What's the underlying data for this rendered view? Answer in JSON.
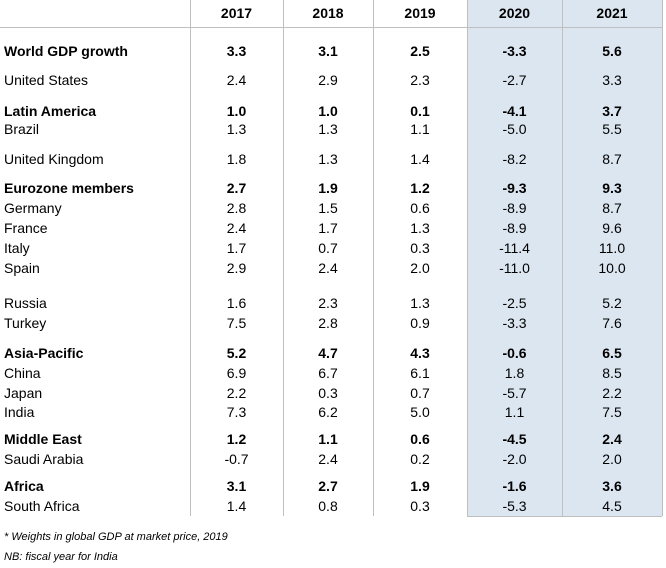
{
  "table": {
    "columns": [
      "2017",
      "2018",
      "2019",
      "2020",
      "2021"
    ],
    "rows": [
      {
        "label": "World GDP growth",
        "bold": true,
        "values": [
          "3.3",
          "3.1",
          "2.5",
          "-3.3",
          "5.6"
        ]
      },
      {
        "label": "United States",
        "values": [
          "2.4",
          "2.9",
          "2.3",
          "-2.7",
          "3.3"
        ]
      },
      {
        "label": "Latin America",
        "bold": true,
        "values": [
          "1.0",
          "1.0",
          "0.1",
          "-4.1",
          "3.7"
        ]
      },
      {
        "label": "Brazil",
        "values": [
          "1.3",
          "1.3",
          "1.1",
          "-5.0",
          "5.5"
        ]
      },
      {
        "label": "United Kingdom",
        "values": [
          "1.8",
          "1.3",
          "1.4",
          "-8.2",
          "8.7"
        ]
      },
      {
        "label": "Eurozone members",
        "bold": true,
        "values": [
          "2.7",
          "1.9",
          "1.2",
          "-9.3",
          "9.3"
        ]
      },
      {
        "label": "Germany",
        "values": [
          "2.8",
          "1.5",
          "0.6",
          "-8.9",
          "8.7"
        ]
      },
      {
        "label": "France",
        "values": [
          "2.4",
          "1.7",
          "1.3",
          "-8.9",
          "9.6"
        ]
      },
      {
        "label": "Italy",
        "values": [
          "1.7",
          "0.7",
          "0.3",
          "-11.4",
          "11.0"
        ]
      },
      {
        "label": "Spain",
        "values": [
          "2.9",
          "2.4",
          "2.0",
          "-11.0",
          "10.0"
        ]
      },
      {
        "label": "Russia",
        "values": [
          "1.6",
          "2.3",
          "1.3",
          "-2.5",
          "5.2"
        ]
      },
      {
        "label": "Turkey",
        "values": [
          "7.5",
          "2.8",
          "0.9",
          "-3.3",
          "7.6"
        ]
      },
      {
        "label": "Asia-Pacific",
        "bold": true,
        "values": [
          "5.2",
          "4.7",
          "4.3",
          "-0.6",
          "6.5"
        ]
      },
      {
        "label": "China",
        "values": [
          "6.9",
          "6.7",
          "6.1",
          "1.8",
          "8.5"
        ]
      },
      {
        "label": "Japan",
        "values": [
          "2.2",
          "0.3",
          "0.7",
          "-5.7",
          "2.2"
        ]
      },
      {
        "label": "India",
        "values": [
          "7.3",
          "6.2",
          "5.0",
          "1.1",
          "7.5"
        ]
      },
      {
        "label": "Middle East",
        "bold": true,
        "values": [
          "1.2",
          "1.1",
          "0.6",
          "-4.5",
          "2.4"
        ]
      },
      {
        "label": "Saudi Arabia",
        "values": [
          "-0.7",
          "2.4",
          "0.2",
          "-2.0",
          "2.0"
        ]
      },
      {
        "label": "Africa",
        "bold": true,
        "values": [
          "3.1",
          "2.7",
          "1.9",
          "-1.6",
          "3.6"
        ]
      },
      {
        "label": "South Africa",
        "values": [
          "1.4",
          "0.8",
          "0.3",
          "-5.3",
          "4.5"
        ]
      }
    ]
  },
  "footnotes": [
    "* Weights in global GDP at market price, 2019",
    "NB: fiscal year for India"
  ]
}
